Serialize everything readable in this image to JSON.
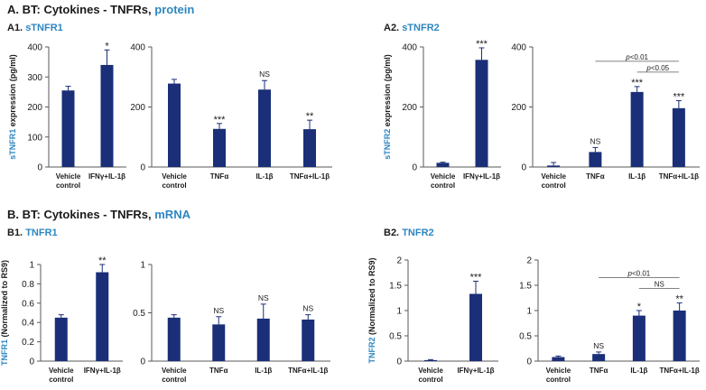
{
  "colors": {
    "bar": "#1a2f78",
    "accent": "#2e86c1",
    "axis": "#595959",
    "text": "#1a1a1a"
  },
  "section_a": {
    "prefix": "A. BT: Cytokines - TNFRs, ",
    "highlight": "protein"
  },
  "section_b": {
    "prefix": "B. BT: Cytokines - TNFRs, ",
    "highlight": "mRNA"
  },
  "sub_a1": {
    "prefix": "A1. ",
    "highlight": "sTNFR1"
  },
  "sub_a2": {
    "prefix": "A2. ",
    "highlight": "sTNFR2"
  },
  "sub_b1": {
    "prefix": "B1. ",
    "highlight": "TNFR1"
  },
  "sub_b2": {
    "prefix": "B2. ",
    "highlight": "TNFR2"
  },
  "chart_data": [
    {
      "id": "a1-left",
      "type": "bar",
      "categories": [
        "Vehicle|control",
        "IFNγ+IL-1β"
      ],
      "values": [
        255,
        340
      ],
      "errors": [
        14,
        50
      ],
      "sig": [
        "",
        "*"
      ],
      "ylabel_highlight": "sTNFR1",
      "ylabel_rest": " expression (pg/ml)",
      "ylim": [
        0,
        400
      ],
      "yticks": [
        0,
        100,
        200,
        300,
        400
      ],
      "yticklabels": [
        "0",
        "100",
        "200",
        "300",
        "400"
      ]
    },
    {
      "id": "a1-right",
      "type": "bar",
      "categories": [
        "Vehicle|control",
        "TNFα",
        "IL-1β",
        "TNFα+IL-1β"
      ],
      "values": [
        278,
        127,
        258,
        126
      ],
      "errors": [
        14,
        18,
        30,
        30
      ],
      "sig": [
        "",
        "***",
        "NS",
        "**"
      ],
      "ylim": [
        0,
        400
      ],
      "yticks": [
        0,
        200,
        400
      ],
      "yticklabels": [
        "0",
        "200",
        "400"
      ]
    },
    {
      "id": "a2-left",
      "type": "bar",
      "categories": [
        "Vehicle|control",
        "IFNγ+IL-1β"
      ],
      "values": [
        14,
        357
      ],
      "errors": [
        2,
        40
      ],
      "sig": [
        "",
        "***"
      ],
      "ylabel_highlight": "sTNFR2",
      "ylabel_rest": " expression (pg/ml)",
      "ylim": [
        0,
        400
      ],
      "yticks": [
        0,
        200,
        400
      ],
      "yticklabels": [
        "0",
        "200",
        "400"
      ]
    },
    {
      "id": "a2-right",
      "type": "bar",
      "categories": [
        "Vehicle|control",
        "TNFα",
        "IL-1β",
        "TNFα+IL-1β"
      ],
      "values": [
        5,
        50,
        250,
        196
      ],
      "errors": [
        10,
        15,
        18,
        25
      ],
      "sig": [
        "",
        "NS",
        "***",
        "***"
      ],
      "brackets": [
        {
          "from": 2,
          "to": 3,
          "level": 1,
          "label_italic": "p",
          "label_rest": "<0.05"
        },
        {
          "from": 1,
          "to": 3,
          "level": 2,
          "label_italic": "p",
          "label_rest": "<0.01"
        }
      ],
      "ylim": [
        0,
        400
      ],
      "yticks": [
        0,
        200,
        400
      ],
      "yticklabels": [
        "0",
        "200",
        "400"
      ]
    },
    {
      "id": "b1-left",
      "type": "bar",
      "categories": [
        "Vehicle|control",
        "IFNγ+IL-1β"
      ],
      "values": [
        0.45,
        0.92
      ],
      "errors": [
        0.03,
        0.08
      ],
      "sig": [
        "",
        "**"
      ],
      "ylabel_highlight": "TNFR1",
      "ylabel_rest": " (Normalized to RS9)",
      "ylim": [
        0,
        1
      ],
      "yticks": [
        0,
        0.2,
        0.4,
        0.6,
        0.8,
        1
      ],
      "yticklabels": [
        "0",
        "0.2",
        "0.4",
        "0.6",
        "0.8",
        "1"
      ]
    },
    {
      "id": "b1-right",
      "type": "bar",
      "categories": [
        "Vehicle|control",
        "TNFα",
        "IL-1β",
        "TNFα+IL-1β"
      ],
      "values": [
        0.45,
        0.38,
        0.44,
        0.43
      ],
      "errors": [
        0.03,
        0.08,
        0.15,
        0.05
      ],
      "sig": [
        "",
        "NS",
        "NS",
        "NS"
      ],
      "ylim": [
        0,
        1
      ],
      "yticks": [
        0,
        0.5,
        1
      ],
      "yticklabels": [
        "0",
        "0.5",
        "1"
      ]
    },
    {
      "id": "b2-left",
      "type": "bar",
      "categories": [
        "Vehicle|control",
        "IFNγ+IL-1β"
      ],
      "values": [
        0.02,
        1.33
      ],
      "errors": [
        0.01,
        0.25
      ],
      "sig": [
        "",
        "***"
      ],
      "ylabel_highlight": "TNFR2",
      "ylabel_rest": " (Normalized to RS9)",
      "ylim": [
        0,
        2
      ],
      "yticks": [
        0,
        0.5,
        1,
        1.5,
        2
      ],
      "yticklabels": [
        "0",
        "0.5",
        "1",
        "1.5",
        "2"
      ]
    },
    {
      "id": "b2-right",
      "type": "bar",
      "categories": [
        "Vehicle|control",
        "TNFα",
        "IL-1β",
        "TNFα+IL-1β"
      ],
      "values": [
        0.08,
        0.14,
        0.9,
        1.0
      ],
      "errors": [
        0.02,
        0.04,
        0.1,
        0.15
      ],
      "sig": [
        "",
        "NS",
        "*",
        "**"
      ],
      "brackets": [
        {
          "from": 2,
          "to": 3,
          "level": 1,
          "label_italic": "",
          "label_rest": "NS"
        },
        {
          "from": 1,
          "to": 3,
          "level": 2,
          "label_italic": "p",
          "label_rest": "<0.01"
        }
      ],
      "ylim": [
        0,
        2
      ],
      "yticks": [
        0,
        0.5,
        1,
        1.5,
        2
      ],
      "yticklabels": [
        "0",
        "0.5",
        "1",
        "1.5",
        "2"
      ]
    }
  ]
}
